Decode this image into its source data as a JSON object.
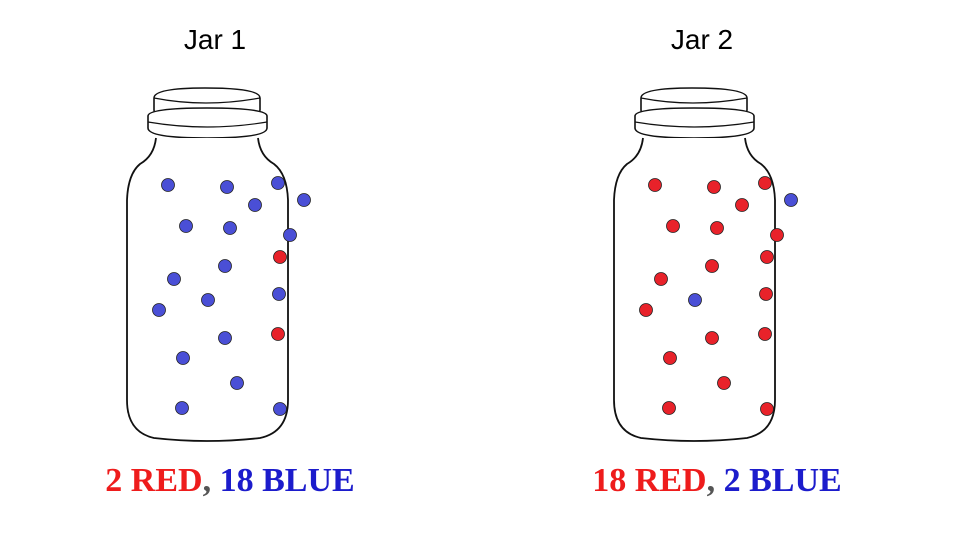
{
  "colors": {
    "red": "#ee1c1c",
    "blue": "#2b2bd0",
    "separator": "#555555",
    "marble_red": "#e8222a",
    "marble_blue": "#4a4fd6"
  },
  "jars": [
    {
      "title": "Jar 1",
      "caption_red": "2 RED",
      "caption_sep": ",",
      "caption_blue": "18 BLUE",
      "red_count": 2,
      "blue_count": 18
    },
    {
      "title": "Jar 2",
      "caption_red": "18 RED",
      "caption_sep": ",",
      "caption_blue": "2 BLUE",
      "red_count": 18,
      "blue_count": 2
    }
  ]
}
